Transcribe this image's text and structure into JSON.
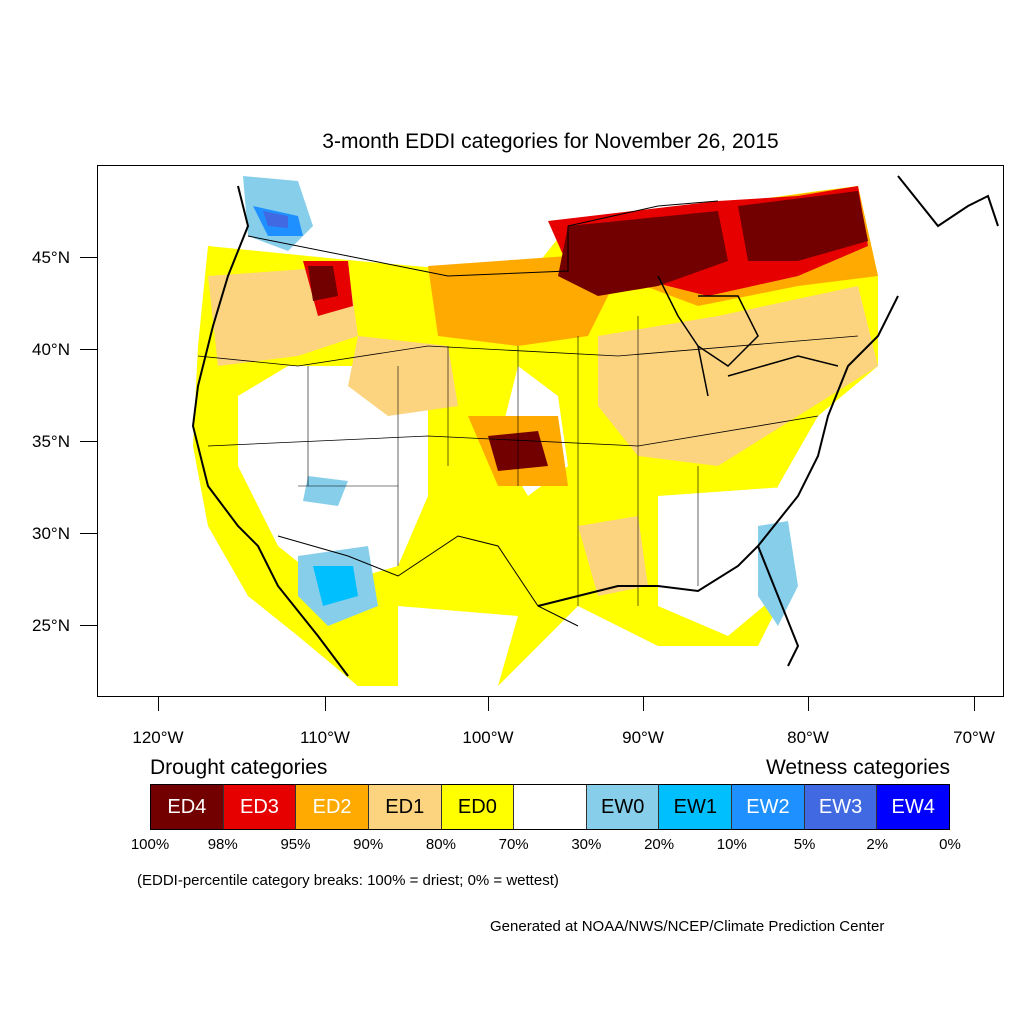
{
  "title": "3-month EDDI categories for November 26, 2015",
  "lat_labels": [
    "45°N",
    "40°N",
    "35°N",
    "30°N",
    "25°N"
  ],
  "lon_labels": [
    "120°W",
    "110°W",
    "100°W",
    "90°W",
    "80°W",
    "70°W"
  ],
  "legend": {
    "drought_heading": "Drought categories",
    "wetness_heading": "Wetness categories",
    "categories": [
      {
        "label": "ED4",
        "color": "#730000",
        "text_color": "#ffffff"
      },
      {
        "label": "ED3",
        "color": "#e60000",
        "text_color": "#ffffff"
      },
      {
        "label": "ED2",
        "color": "#ffaa00",
        "text_color": "#ffffff"
      },
      {
        "label": "ED1",
        "color": "#fcd37f",
        "text_color": "#000000"
      },
      {
        "label": "ED0",
        "color": "#ffff00",
        "text_color": "#000000"
      },
      {
        "label": "",
        "color": "#ffffff",
        "text_color": "#000000"
      },
      {
        "label": "EW0",
        "color": "#87ceeb",
        "text_color": "#000000"
      },
      {
        "label": "EW1",
        "color": "#00bfff",
        "text_color": "#000000"
      },
      {
        "label": "EW2",
        "color": "#1e90ff",
        "text_color": "#ffffff"
      },
      {
        "label": "EW3",
        "color": "#4169e1",
        "text_color": "#ffffff"
      },
      {
        "label": "EW4",
        "color": "#0000ff",
        "text_color": "#ffffff"
      }
    ],
    "percent_breaks": [
      "100%",
      "98%",
      "95%",
      "90%",
      "80%",
      "70%",
      "30%",
      "20%",
      "10%",
      "5%",
      "2%",
      "0%"
    ]
  },
  "note": "(EDDI-percentile category breaks: 100% = driest; 0% = wettest)",
  "credit": "Generated at NOAA/NWS/NCEP/Climate Prediction Center"
}
